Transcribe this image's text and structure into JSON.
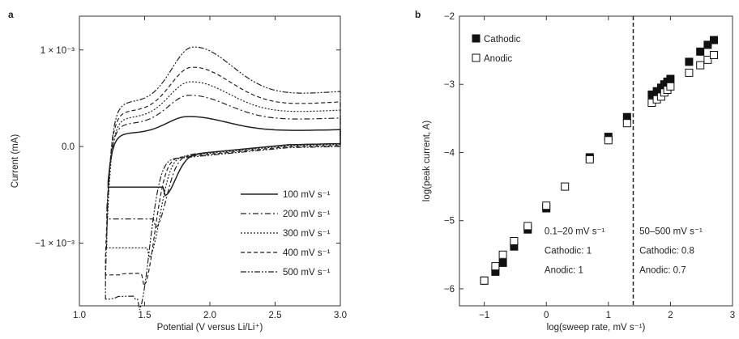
{
  "chart_data": [
    {
      "panel": "a",
      "type": "line",
      "xlabel": "Potential (V versus Li/Li⁺)",
      "ylabel": "Current (mA)",
      "xlim": [
        1.0,
        3.0
      ],
      "ylim": [
        -0.00165,
        0.00135
      ],
      "xticks": [
        1.0,
        1.5,
        2.0,
        2.5,
        3.0
      ],
      "xtick_labels": [
        "1.0",
        "1.5",
        "2.0",
        "2.5",
        "3.0"
      ],
      "yticks": [
        0.001,
        0.0,
        -0.001
      ],
      "ytick_labels": [
        "1 × 10⁻³",
        "0.0",
        "−1 × 10⁻³"
      ],
      "legend_position": "bottom-right",
      "series": [
        {
          "name": "100 mV s⁻¹",
          "style": "solid",
          "start_v": 1.22,
          "ox_peak_v": 1.83,
          "ox_peak_i": 0.00031,
          "red_peak_v": 1.65,
          "red_peak_i": -0.00042,
          "i_3v_up": 6e-05,
          "i_3v_down": 3e-05
        },
        {
          "name": "200 mV s⁻¹",
          "style": "dashdot",
          "start_v": 1.21,
          "ox_peak_v": 1.84,
          "ox_peak_i": 0.00053,
          "red_peak_v": 1.58,
          "red_peak_i": -0.00075,
          "i_3v_up": 0.0001,
          "i_3v_down": 3e-05
        },
        {
          "name": "300 mV s⁻¹",
          "style": "dotted",
          "start_v": 1.21,
          "ox_peak_v": 1.85,
          "ox_peak_i": 0.00067,
          "red_peak_v": 1.53,
          "red_peak_i": -0.00105,
          "i_3v_up": 0.00013,
          "i_3v_down": 2e-05
        },
        {
          "name": "400 mV s⁻¹",
          "style": "dashed",
          "start_v": 1.2,
          "ox_peak_v": 1.86,
          "ox_peak_i": 0.00082,
          "red_peak_v": 1.49,
          "red_peak_i": -0.00133,
          "i_3v_up": 0.00016,
          "i_3v_down": 1e-05
        },
        {
          "name": "500 mV s⁻¹",
          "style": "dashdotdot",
          "start_v": 1.2,
          "ox_peak_v": 1.87,
          "ox_peak_i": 0.00103,
          "red_peak_v": 1.45,
          "red_peak_i": -0.00158,
          "i_3v_up": 0.00019,
          "i_3v_down": 0.0
        }
      ]
    },
    {
      "panel": "b",
      "type": "scatter",
      "xlabel": "log(sweep rate, mV s⁻¹)",
      "ylabel": "log(peak current, A)",
      "xlim": [
        -1.4,
        3.0
      ],
      "ylim": [
        -6.25,
        -2.0
      ],
      "xticks": [
        -1,
        0,
        1,
        2,
        3
      ],
      "xtick_labels": [
        "−1",
        "0",
        "1",
        "2",
        "3"
      ],
      "yticks": [
        -2,
        -3,
        -4,
        -5,
        -6
      ],
      "ytick_labels": [
        "−2",
        "−3",
        "−4",
        "−5",
        "−6"
      ],
      "divider_x": 1.4,
      "legend_position": "top-left",
      "series": [
        {
          "name": "Cathodic",
          "marker": "filled-square",
          "x": [
            -1.0,
            -0.82,
            -0.7,
            -0.52,
            -0.3,
            0.0,
            0.7,
            1.0,
            1.3,
            1.7,
            1.78,
            1.85,
            1.9,
            1.95,
            2.0,
            2.3,
            2.48,
            2.6,
            2.7
          ],
          "y": [
            -5.88,
            -5.75,
            -5.62,
            -5.38,
            -5.13,
            -4.82,
            -4.07,
            -3.77,
            -3.48,
            -3.15,
            -3.1,
            -3.05,
            -3.0,
            -2.96,
            -2.92,
            -2.67,
            -2.52,
            -2.42,
            -2.35
          ]
        },
        {
          "name": "Anodic",
          "marker": "open-square",
          "x": [
            -1.0,
            -0.82,
            -0.7,
            -0.52,
            -0.3,
            0.0,
            0.3,
            0.7,
            1.0,
            1.3,
            1.7,
            1.78,
            1.85,
            1.9,
            1.95,
            2.0,
            2.3,
            2.48,
            2.6,
            2.7
          ],
          "y": [
            -5.88,
            -5.67,
            -5.5,
            -5.3,
            -5.08,
            -4.78,
            -4.5,
            -4.1,
            -3.82,
            -3.57,
            -3.27,
            -3.22,
            -3.18,
            -3.12,
            -3.08,
            -3.03,
            -2.83,
            -2.72,
            -2.64,
            -2.57
          ]
        }
      ],
      "annotations": [
        {
          "lines": [
            "0.1–20 mV s⁻¹",
            "Cathodic: 1",
            "Anodic: 1"
          ],
          "x": -0.03,
          "y": -5.2
        },
        {
          "lines": [
            "50–500 mV s⁻¹",
            "Cathodic: 0.8",
            "Anodic: 0.7"
          ],
          "x": 1.5,
          "y": -5.2
        }
      ]
    }
  ],
  "panels": {
    "a_label": "a",
    "b_label": "b"
  }
}
